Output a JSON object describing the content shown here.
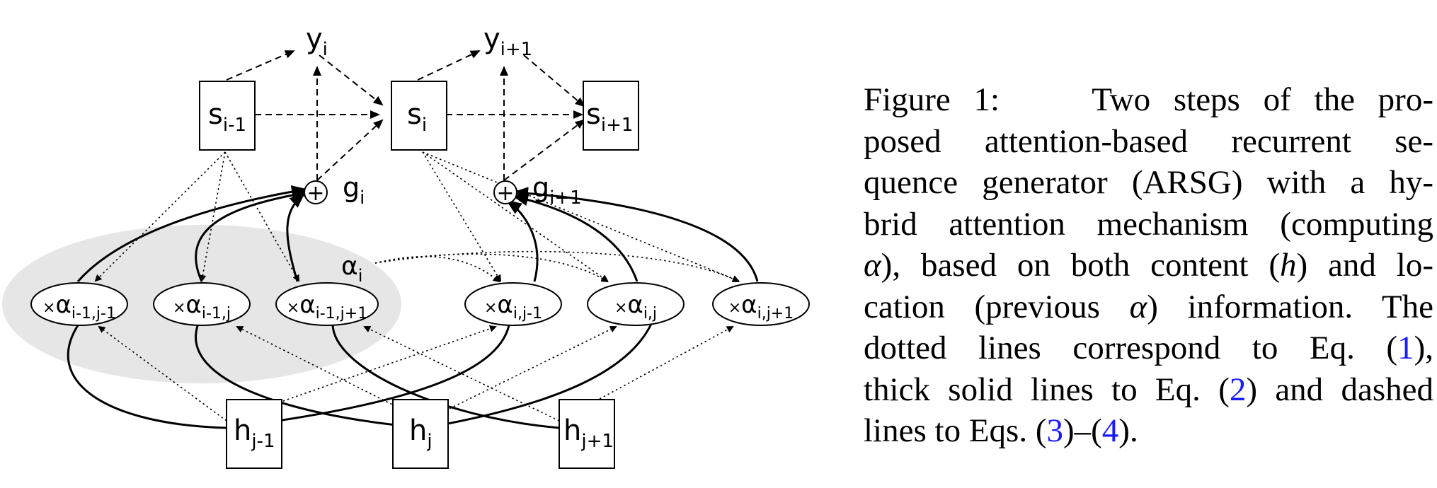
{
  "figure": {
    "caption": {
      "label": "Figure 1:",
      "lines": [
        [
          "Two steps of the pro-"
        ],
        [
          "posed attention-based recurrent se-"
        ],
        [
          "quence generator (ARSG) with a hy-"
        ],
        [
          "brid attention mechanism (computing"
        ],
        [
          "α",
          "), based on both content (",
          "h",
          ") and lo-"
        ],
        [
          "cation (previous ",
          "α",
          ") information. The"
        ],
        [
          "dotted lines correspond to Eq. (",
          "1",
          "),"
        ],
        [
          "thick solid lines to Eq. (",
          "2",
          ") and dashed"
        ],
        [
          "lines to Eqs. (",
          "3",
          ")–(",
          "4",
          ")."
        ]
      ]
    },
    "diagram": {
      "outputs": [
        {
          "base": "y",
          "sub": "i"
        },
        {
          "base": "y",
          "sub": "i+1"
        }
      ],
      "states": [
        {
          "base": "s",
          "sub": "i-1"
        },
        {
          "base": "s",
          "sub": "i"
        },
        {
          "base": "s",
          "sub": "i+1"
        }
      ],
      "glimpses": [
        {
          "symbol": "+",
          "base": "g",
          "sub": "i"
        },
        {
          "symbol": "+",
          "base": "g",
          "sub": "i+1"
        }
      ],
      "alpha_label": {
        "base": "α",
        "sub": "i"
      },
      "alphas": [
        {
          "prefix": "×",
          "base": "α",
          "sub": "i-1,j-1"
        },
        {
          "prefix": "×",
          "base": "α",
          "sub": "i-1,j"
        },
        {
          "prefix": "×",
          "base": "α",
          "sub": "i-1,j+1"
        },
        {
          "prefix": "×",
          "base": "α",
          "sub": "i,j-1"
        },
        {
          "prefix": "×",
          "base": "α",
          "sub": "i,j"
        },
        {
          "prefix": "×",
          "base": "α",
          "sub": "i,j+1"
        }
      ],
      "hidden": [
        {
          "base": "h",
          "sub": "j-1"
        },
        {
          "base": "h",
          "sub": "j"
        },
        {
          "base": "h",
          "sub": "j+1"
        }
      ],
      "colors": {
        "shade": "#e6e6e6",
        "link": "#1a1aff",
        "ink": "#000000"
      }
    }
  }
}
